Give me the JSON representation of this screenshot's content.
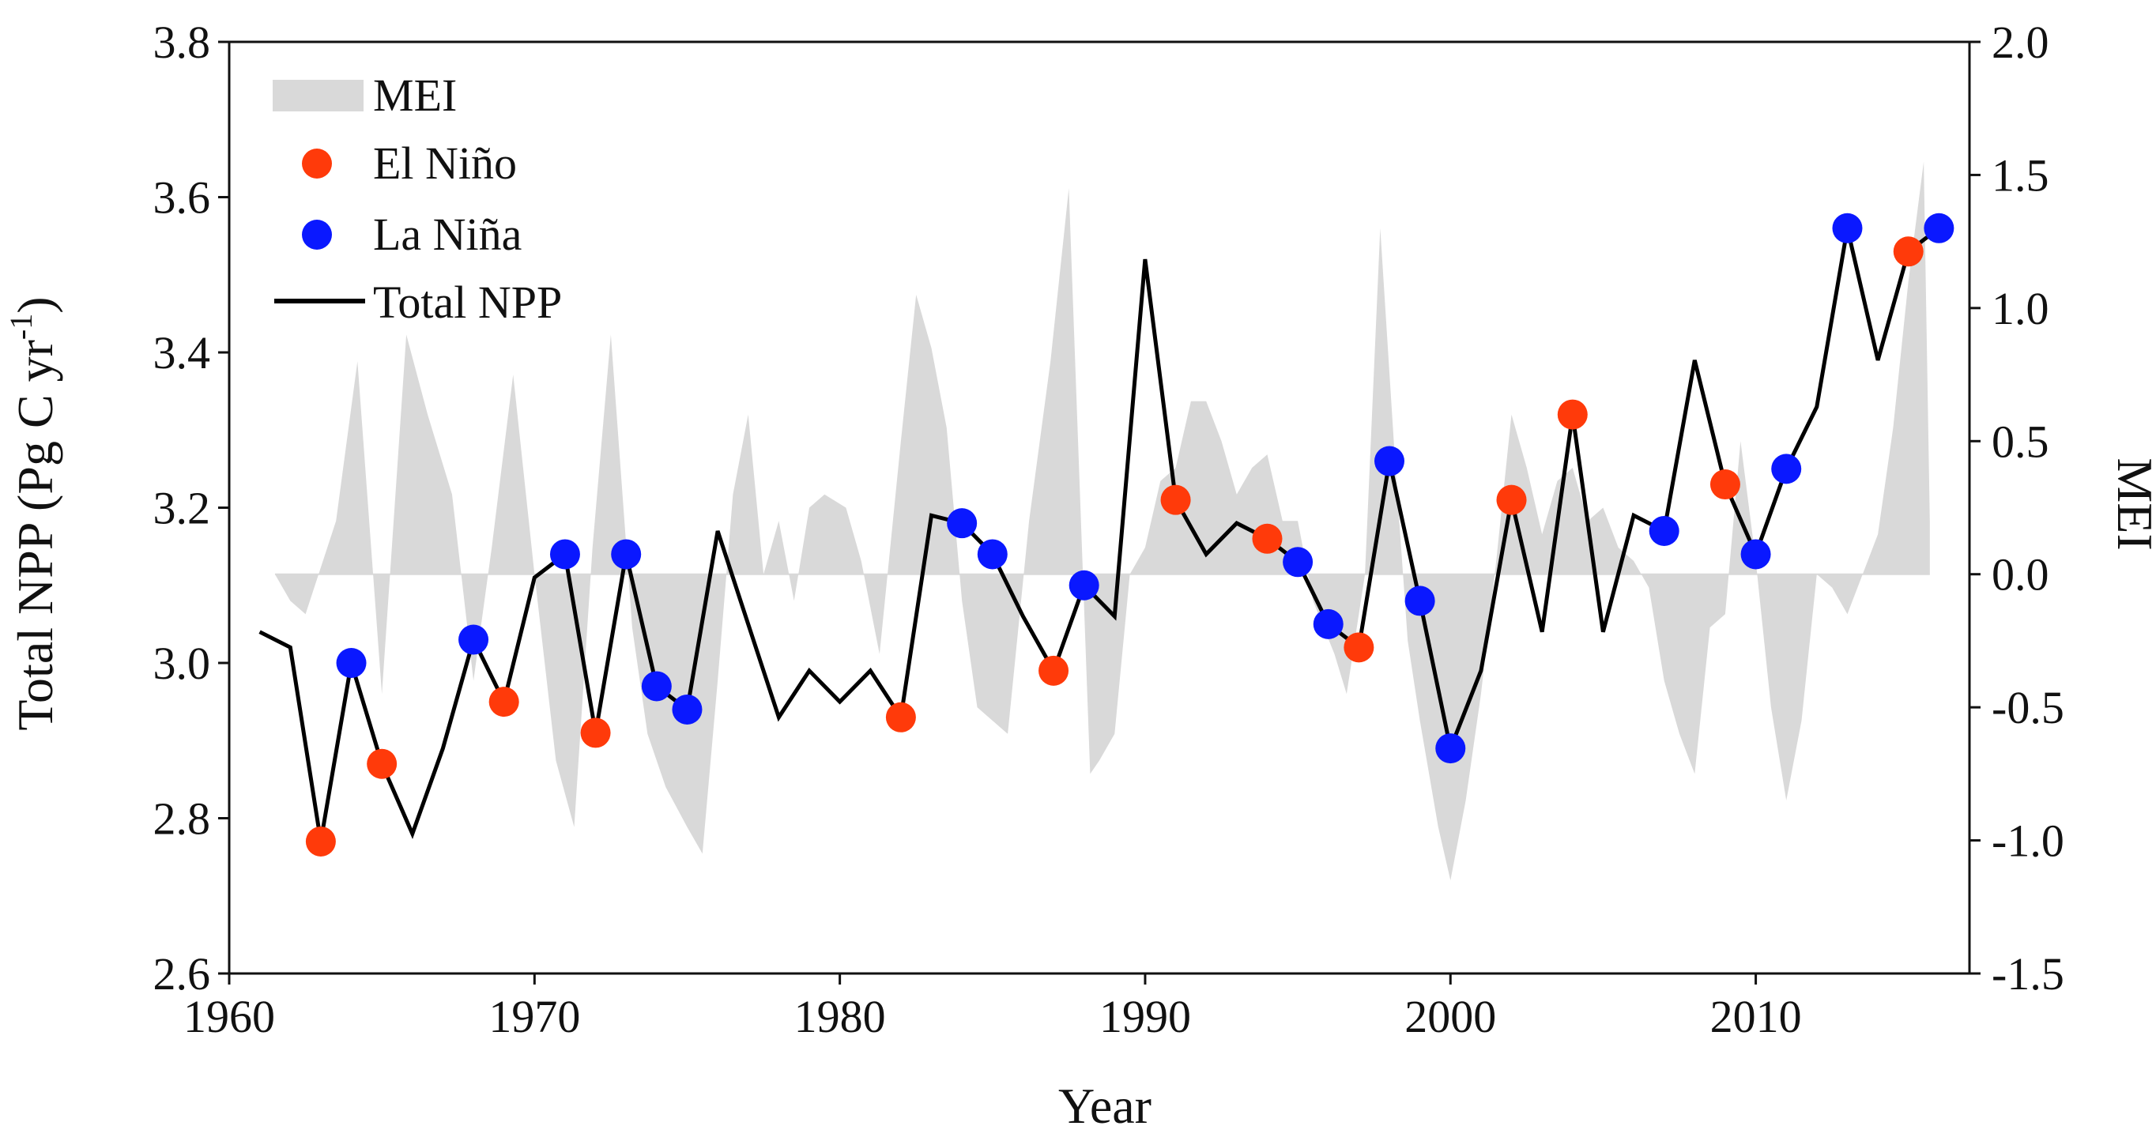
{
  "chart_data": {
    "type": "line",
    "title": "",
    "xlabel": "Year",
    "ylabel": "Total NPP (Pg C yr",
    "ylabel_superscript": "-1",
    "ylabel_suffix": ")",
    "y2label": "MEI",
    "xlim": [
      1960,
      2017
    ],
    "ylim": [
      2.6,
      3.8
    ],
    "y2lim": [
      -1.5,
      2.0
    ],
    "x_ticks": [
      1960,
      1970,
      1980,
      1990,
      2000,
      2010
    ],
    "x_tick_labels": [
      "1960",
      "1970",
      "1980",
      "1990",
      "2000",
      "2010"
    ],
    "y_ticks": [
      2.6,
      2.8,
      3.0,
      3.2,
      3.4,
      3.6,
      3.8
    ],
    "y_tick_labels": [
      "2.6",
      "2.8",
      "3.0",
      "3.2",
      "3.4",
      "3.6",
      "3.8"
    ],
    "y2_ticks": [
      -1.5,
      -1.0,
      -0.5,
      0.0,
      0.5,
      1.0,
      1.5,
      2.0
    ],
    "y2_tick_labels": [
      "-1.5",
      "-1.0",
      "-0.5",
      "0.0",
      "0.5",
      "1.0",
      "1.5",
      "2.0"
    ],
    "legend": {
      "position": "top-left",
      "entries": [
        {
          "label": "MEI",
          "kind": "area"
        },
        {
          "label": "El Niño",
          "kind": "marker"
        },
        {
          "label": "La Niña",
          "kind": "marker"
        },
        {
          "label": "Total NPP",
          "kind": "line"
        }
      ]
    },
    "colors": {
      "npp_line": "#000000",
      "mei_fill": "#d9d9d9",
      "el_nino": "#ff3a0a",
      "la_nina": "#0a18ff"
    },
    "npp_series": {
      "name": "Total NPP",
      "years": [
        1961,
        1962,
        1963,
        1964,
        1965,
        1966,
        1967,
        1968,
        1969,
        1970,
        1971,
        1972,
        1973,
        1974,
        1975,
        1976,
        1977,
        1978,
        1979,
        1980,
        1981,
        1982,
        1983,
        1984,
        1985,
        1986,
        1987,
        1988,
        1989,
        1990,
        1991,
        1992,
        1993,
        1994,
        1995,
        1996,
        1997,
        1998,
        1999,
        2000,
        2001,
        2002,
        2003,
        2004,
        2005,
        2006,
        2007,
        2008,
        2009,
        2010,
        2011,
        2012,
        2013,
        2014,
        2015,
        2016
      ],
      "values": [
        3.04,
        3.02,
        2.77,
        3.0,
        2.87,
        2.78,
        2.89,
        3.03,
        2.95,
        3.11,
        3.14,
        2.91,
        3.14,
        2.97,
        2.94,
        3.17,
        3.05,
        2.93,
        2.99,
        2.95,
        2.99,
        2.93,
        3.19,
        3.18,
        3.14,
        3.06,
        2.99,
        3.1,
        3.06,
        3.52,
        3.21,
        3.14,
        3.18,
        3.16,
        3.13,
        3.05,
        3.02,
        3.26,
        3.08,
        2.89,
        2.99,
        3.21,
        3.04,
        3.32,
        3.04,
        3.19,
        3.17,
        3.39,
        3.23,
        3.14,
        3.25,
        3.33,
        3.56,
        3.39,
        3.53,
        3.56
      ]
    },
    "el_nino": {
      "name": "El Niño",
      "years": [
        1963,
        1965,
        1969,
        1972,
        1982,
        1987,
        1991,
        1994,
        1997,
        2002,
        2004,
        2009,
        2015
      ],
      "values": [
        2.77,
        2.87,
        2.95,
        2.91,
        2.93,
        2.99,
        3.21,
        3.16,
        3.02,
        3.21,
        3.32,
        3.23,
        3.53
      ]
    },
    "la_nina": {
      "name": "La Niña",
      "years": [
        1964,
        1968,
        1971,
        1973,
        1974,
        1975,
        1984,
        1985,
        1988,
        1995,
        1996,
        1998,
        1999,
        2000,
        2007,
        2010,
        2011,
        2013,
        2016
      ],
      "values": [
        3.0,
        3.03,
        3.14,
        3.14,
        2.97,
        2.94,
        3.18,
        3.14,
        3.1,
        3.13,
        3.05,
        3.26,
        3.08,
        2.89,
        3.17,
        3.14,
        3.25,
        3.56,
        3.56
      ]
    },
    "mei_series": {
      "name": "MEI",
      "x": [
        1961.5,
        1962.0,
        1962.5,
        1963.5,
        1964.2,
        1965.0,
        1965.8,
        1966.5,
        1967.3,
        1968.0,
        1968.6,
        1969.3,
        1970.0,
        1970.7,
        1971.3,
        1971.9,
        1972.5,
        1973.2,
        1973.7,
        1974.3,
        1975.0,
        1975.5,
        1976.0,
        1976.5,
        1977.0,
        1977.5,
        1978.0,
        1978.5,
        1979.0,
        1979.5,
        1980.2,
        1980.7,
        1981.3,
        1982.0,
        1982.5,
        1983.0,
        1983.5,
        1984.0,
        1984.5,
        1985.0,
        1985.5,
        1986.2,
        1986.9,
        1987.5,
        1988.2,
        1988.5,
        1989.0,
        1989.5,
        1990.0,
        1990.5,
        1991.0,
        1991.5,
        1992.0,
        1992.5,
        1993.0,
        1993.5,
        1994.0,
        1994.5,
        1995.0,
        1995.5,
        1996.2,
        1996.6,
        1997.2,
        1997.7,
        1998.2,
        1998.6,
        1999.0,
        1999.6,
        2000.0,
        2000.5,
        2001.0,
        2001.5,
        2002.0,
        2002.5,
        2003.0,
        2003.5,
        2004.0,
        2004.5,
        2005.0,
        2005.5,
        2006.0,
        2006.5,
        2007.0,
        2007.5,
        2008.0,
        2008.5,
        2009.0,
        2009.5,
        2010.0,
        2010.5,
        2011.0,
        2011.5,
        2012.0,
        2012.5,
        2013.0,
        2013.5,
        2014.0,
        2014.5,
        2015.0,
        2015.5,
        2015.7
      ],
      "values": [
        0.0,
        -0.1,
        -0.15,
        0.2,
        0.8,
        -0.45,
        0.9,
        0.6,
        0.3,
        -0.4,
        0.1,
        0.75,
        0.0,
        -0.7,
        -0.95,
        0.1,
        0.9,
        -0.2,
        -0.6,
        -0.8,
        -0.95,
        -1.05,
        -0.4,
        0.3,
        0.6,
        0.0,
        0.2,
        -0.1,
        0.25,
        0.3,
        0.25,
        0.05,
        -0.3,
        0.5,
        1.05,
        0.85,
        0.55,
        -0.1,
        -0.5,
        -0.55,
        -0.6,
        0.2,
        0.8,
        1.45,
        -0.75,
        -0.7,
        -0.6,
        0.0,
        0.1,
        0.35,
        0.4,
        0.65,
        0.65,
        0.5,
        0.3,
        0.4,
        0.45,
        0.2,
        0.2,
        -0.1,
        -0.3,
        -0.45,
        0.0,
        1.3,
        0.4,
        -0.25,
        -0.55,
        -0.95,
        -1.15,
        -0.85,
        -0.45,
        0.05,
        0.6,
        0.4,
        0.15,
        0.35,
        0.4,
        0.2,
        0.25,
        0.1,
        0.05,
        -0.05,
        -0.4,
        -0.6,
        -0.75,
        -0.2,
        -0.15,
        0.5,
        0.05,
        -0.5,
        -0.85,
        -0.55,
        0.0,
        -0.05,
        -0.15,
        0.0,
        0.15,
        0.55,
        1.1,
        1.55,
        0.2
      ]
    }
  }
}
